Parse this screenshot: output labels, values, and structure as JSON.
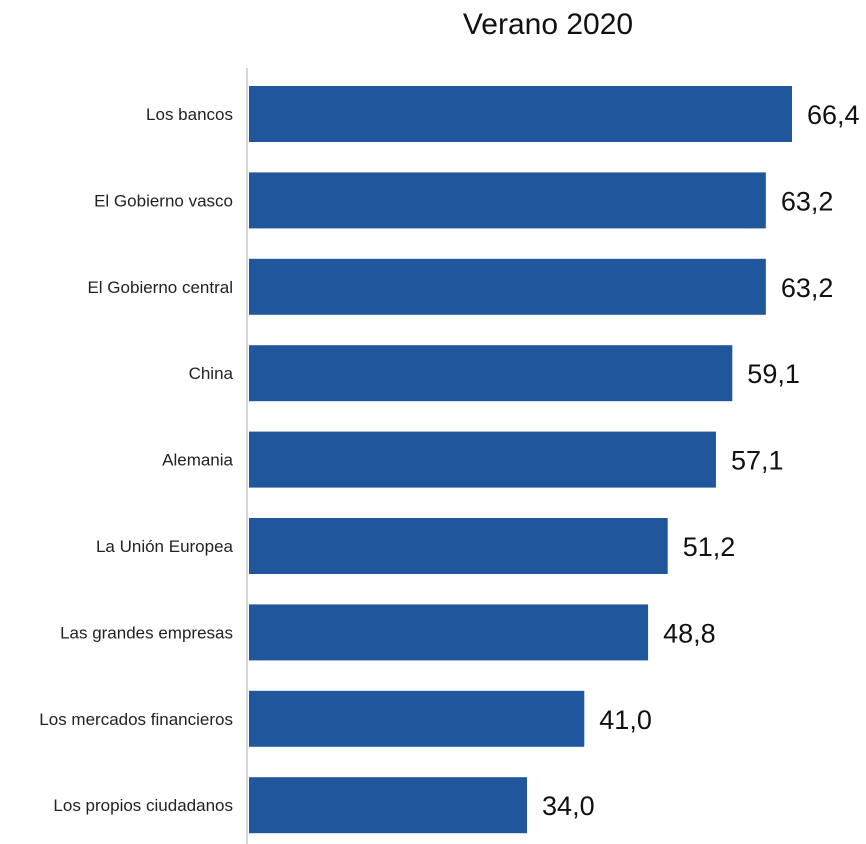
{
  "colors": {
    "bar": "#1F569C",
    "axis": "#C8C8C8"
  },
  "chart_data": {
    "type": "bar",
    "orientation": "horizontal",
    "title": "Verano 2020",
    "xlabel": "",
    "ylabel": "",
    "xlim": [
      0,
      66.4
    ],
    "grid": false,
    "legend": "none",
    "categories": [
      "Los bancos",
      "El Gobierno vasco",
      "El Gobierno central",
      "China",
      "Alemania",
      "La Unión Europea",
      "Las grandes empresas",
      "Los mercados financieros",
      "Los propios ciudadanos"
    ],
    "values": [
      66.4,
      63.2,
      63.2,
      59.1,
      57.1,
      51.2,
      48.8,
      41.0,
      34.0
    ],
    "value_labels": [
      "66,4",
      "63,2",
      "63,2",
      "59,1",
      "57,1",
      "51,2",
      "48,8",
      "41,0",
      "34,0"
    ]
  }
}
